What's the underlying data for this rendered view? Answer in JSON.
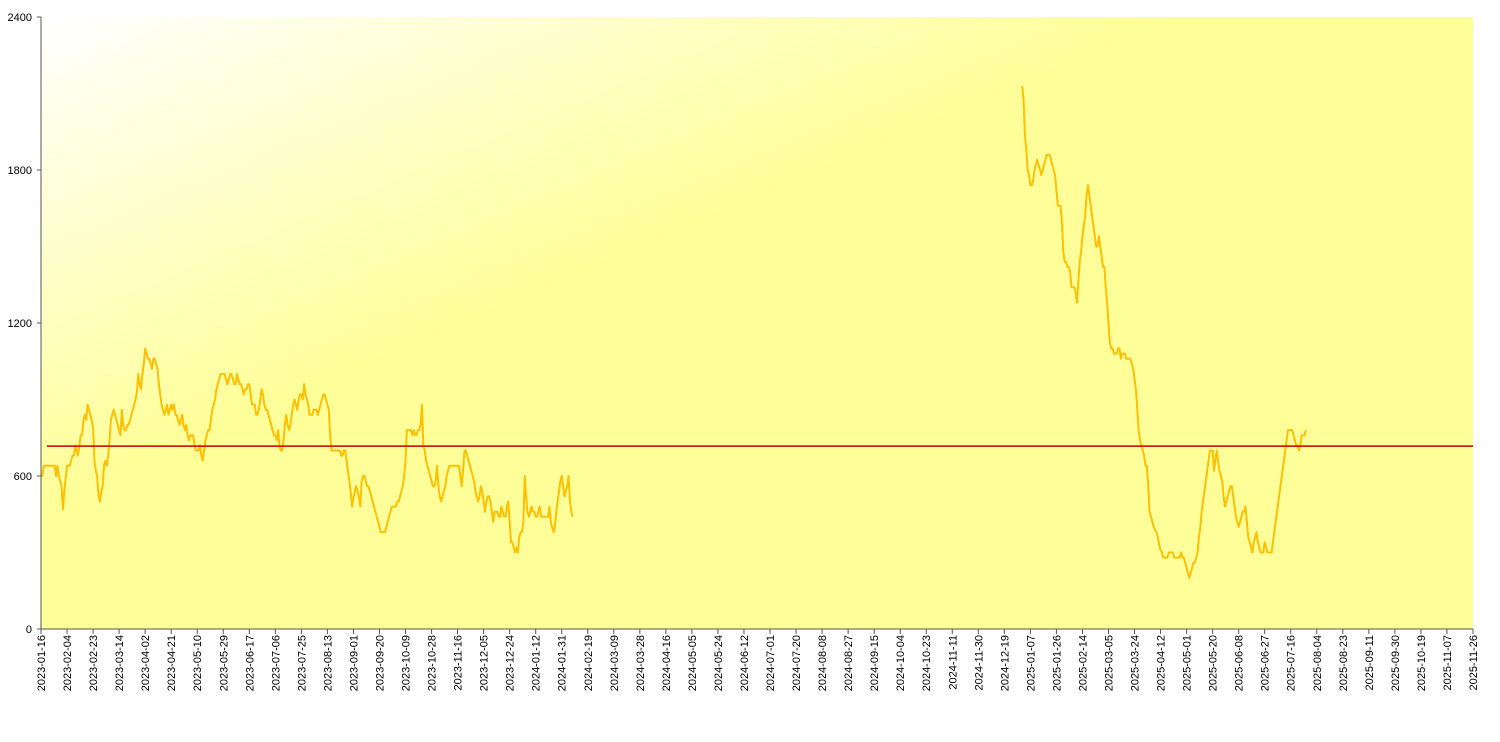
{
  "chart_data": {
    "type": "line",
    "title": "",
    "xlabel": "",
    "ylabel": "",
    "ylim": [
      0,
      2400
    ],
    "y_ticks": [
      "0",
      "600",
      "1200",
      "1800",
      "2400"
    ],
    "x_range": [
      "2023-01-16",
      "2025-11-26"
    ],
    "x_ticks": [
      "2023-01-16",
      "2023-02-04",
      "2023-02-23",
      "2023-03-14",
      "2023-04-02",
      "2023-04-21",
      "2023-05-10",
      "2023-05-29",
      "2023-06-17",
      "2023-07-06",
      "2023-07-25",
      "2023-08-13",
      "2023-09-01",
      "2023-09-20",
      "2023-10-09",
      "2023-10-28",
      "2023-11-16",
      "2023-12-05",
      "2023-12-24",
      "2024-01-12",
      "2024-01-31",
      "2024-02-19",
      "2024-03-09",
      "2024-03-28",
      "2024-04-16",
      "2024-05-05",
      "2024-05-24",
      "2024-06-12",
      "2024-07-01",
      "2024-07-20",
      "2024-08-08",
      "2024-08-27",
      "2024-09-15",
      "2024-10-04",
      "2024-10-23",
      "2024-11-11",
      "2024-11-30",
      "2024-12-19",
      "2025-01-07",
      "2025-01-26",
      "2025-02-14",
      "2025-03-05",
      "2025-03-24",
      "2025-04-12",
      "2025-05-01",
      "2025-05-20",
      "2025-06-08",
      "2025-06-27",
      "2025-07-16",
      "2025-08-04",
      "2025-08-23",
      "2025-09-11",
      "2025-09-30",
      "2025-10-19",
      "2025-11-07",
      "2025-11-26"
    ],
    "grid": false,
    "background": {
      "from": "#ffffff",
      "to": "#ffff99"
    },
    "series": [
      {
        "color": "#ffc000",
        "segments": [
          {
            "start": "2023-01-16",
            "step_days": 1,
            "values": [
              600,
              600,
              640,
              640,
              640,
              640,
              640,
              640,
              640,
              640,
              640,
              600,
              640,
              600,
              580,
              560,
              470,
              540,
              590,
              640,
              640,
              640,
              660,
              680,
              680,
              720,
              700,
              680,
              720,
              760,
              760,
              820,
              840,
              820,
              880,
              860,
              840,
              820,
              790,
              660,
              620,
              600,
              520,
              500,
              540,
              560,
              640,
              660,
              640,
              680,
              740,
              820,
              840,
              860,
              840,
              820,
              800,
              780,
              760,
              860,
              800,
              780,
              780,
              800,
              800,
              820,
              840,
              860,
              880,
              900,
              930,
              1000,
              960,
              940,
              1000,
              1040,
              1100,
              1080,
              1060,
              1060,
              1040,
              1020,
              1060,
              1060,
              1040,
              1020,
              960,
              920,
              880,
              860,
              840,
              860,
              880,
              840,
              860,
              880,
              860,
              880,
              840,
              840,
              820,
              800,
              820,
              840,
              800,
              780,
              800,
              760,
              740,
              760,
              760,
              760,
              720,
              700,
              700,
              700,
              720,
              680,
              660,
              700,
              740,
              760,
              780,
              780,
              820,
              860,
              880,
              900,
              940,
              960,
              980,
              1000,
              1000,
              1000,
              1000,
              980,
              960,
              980,
              1000,
              1000,
              980,
              960,
              960,
              1000,
              980,
              960,
              960,
              940,
              920,
              940,
              940,
              960,
              960,
              920,
              880,
              880,
              880,
              840,
              840,
              860,
              900,
              940,
              920,
              880,
              860,
              860,
              840,
              820,
              800,
              780,
              760,
              760,
              740,
              780,
              720,
              700,
              700,
              740,
              800,
              840,
              800,
              780,
              800,
              840,
              880,
              900,
              880,
              860,
              900,
              920,
              920,
              900,
              960,
              920,
              900,
              880,
              840,
              840,
              840,
              860,
              860,
              860,
              840,
              860,
              880,
              900,
              920,
              920,
              900,
              880,
              860,
              760,
              700,
              700,
              700,
              700,
              700,
              700,
              700,
              680,
              680,
              700,
              700,
              660,
              620,
              580,
              540,
              480,
              510,
              540,
              560,
              540,
              520,
              480,
              580,
              600,
              600,
              580,
              560,
              560,
              540,
              520,
              500,
              480,
              460,
              440,
              420,
              400,
              380,
              380,
              380,
              380,
              400,
              420,
              440,
              460,
              480,
              480,
              480,
              480,
              500,
              500,
              520,
              540,
              560,
              600,
              660,
              780,
              780,
              780,
              780,
              760,
              780,
              760,
              760,
              780,
              780,
              800,
              880,
              720,
              700,
              660,
              640,
              620,
              600,
              580,
              560,
              560,
              580,
              640,
              560,
              520,
              500,
              520,
              540,
              560,
              600,
              620,
              640,
              640,
              640,
              640,
              640,
              640,
              640,
              640,
              600,
              560,
              620,
              700,
              700,
              680,
              660,
              640,
              620,
              600,
              580,
              540,
              520,
              500,
              520,
              560,
              540,
              500,
              460,
              500,
              520,
              520,
              500,
              460,
              420,
              460,
              460,
              460,
              440,
              440,
              480,
              460,
              440,
              440,
              480,
              500,
              420,
              340,
              340,
              320,
              300,
              320,
              300,
              360,
              380,
              380,
              420,
              600,
              520,
              460,
              440,
              460,
              480,
              460,
              460,
              440,
              440,
              460,
              480,
              440,
              440,
              440,
              440,
              440,
              440,
              480,
              420,
              400,
              380,
              400,
              460,
              500,
              540,
              580,
              600,
              560,
              520,
              540,
              560,
              600,
              500,
              460,
              440
            ]
          },
          {
            "start": "2025-01-01",
            "step_days": 1,
            "values": [
              2130,
              2080,
              1940,
              1880,
              1800,
              1780,
              1740,
              1740,
              1760,
              1800,
              1820,
              1840,
              1820,
              1800,
              1780,
              1800,
              1820,
              1840,
              1860,
              1860,
              1860,
              1840,
              1820,
              1800,
              1780,
              1720,
              1660,
              1660,
              1660,
              1600,
              1480,
              1440,
              1440,
              1420,
              1420,
              1400,
              1340,
              1340,
              1340,
              1320,
              1280,
              1360,
              1440,
              1480,
              1540,
              1580,
              1620,
              1700,
              1740,
              1700,
              1660,
              1620,
              1580,
              1540,
              1500,
              1500,
              1540,
              1500,
              1460,
              1420,
              1420,
              1340,
              1280,
              1200,
              1120,
              1100,
              1100,
              1080,
              1080,
              1080,
              1100,
              1100,
              1060,
              1080,
              1080,
              1080,
              1060,
              1060,
              1060,
              1060,
              1040,
              1020,
              980,
              940,
              860,
              780,
              740,
              720,
              700,
              680,
              640,
              640,
              560,
              460,
              440,
              420,
              400,
              390,
              380,
              360,
              330,
              310,
              300,
              280,
              280,
              280,
              280,
              300,
              300,
              300,
              300,
              280,
              280,
              280,
              280,
              280,
              300,
              280,
              280,
              260,
              240,
              220,
              200,
              220,
              240,
              260,
              260,
              280,
              300,
              360,
              400,
              460,
              500,
              540,
              580,
              620,
              660,
              700,
              700,
              700,
              620,
              660,
              700,
              660,
              620,
              600,
              580,
              520,
              480,
              500,
              520,
              540,
              560,
              560,
              520,
              480,
              440,
              420,
              400,
              420,
              440,
              460,
              460,
              480,
              420,
              360,
              340,
              320,
              300,
              340,
              360,
              380,
              340,
              320,
              300,
              300,
              300,
              340,
              320,
              300,
              300,
              300,
              300,
              340,
              380,
              420,
              460,
              500,
              540,
              580,
              620,
              660,
              700,
              740,
              780,
              780,
              780,
              780,
              760,
              740,
              720,
              720,
              700,
              720,
              760,
              760,
              760,
              780
            ]
          }
        ]
      },
      {
        "color": "#c00000",
        "type": "hline",
        "value": 717
      }
    ]
  }
}
